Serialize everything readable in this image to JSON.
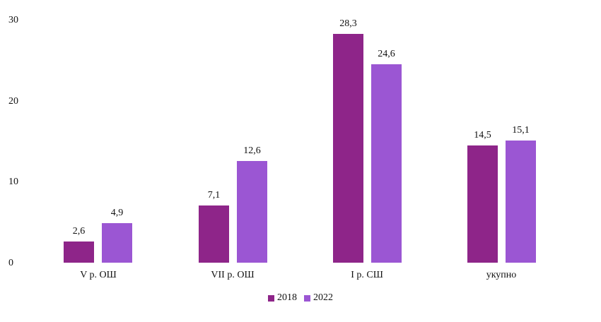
{
  "chart_data": {
    "type": "bar",
    "title": "",
    "xlabel": "",
    "ylabel": "",
    "ylim": [
      0,
      30
    ],
    "yticks": [
      0,
      10,
      20,
      30
    ],
    "grid": false,
    "legend_position": "bottom",
    "categories": [
      "V р. ОШ",
      "VII р. ОШ",
      "I р. СШ",
      "укупно"
    ],
    "series": [
      {
        "name": "2018",
        "color": "#8e2589",
        "values": [
          2.6,
          7.1,
          28.3,
          14.5
        ],
        "labels": [
          "2,6",
          "7,1",
          "28,3",
          "14,5"
        ]
      },
      {
        "name": "2022",
        "color": "#9b56d3",
        "values": [
          4.9,
          12.6,
          24.6,
          15.1
        ],
        "labels": [
          "4,9",
          "12,6",
          "24,6",
          "15,1"
        ]
      }
    ]
  },
  "axis": {
    "yticks": [
      "30",
      "20",
      "10",
      "0"
    ]
  },
  "legend": {
    "items": [
      "2018",
      "2022"
    ]
  }
}
